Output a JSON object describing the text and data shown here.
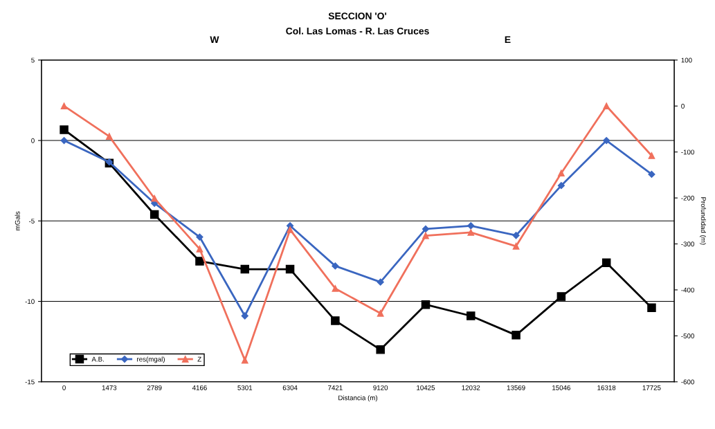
{
  "chart_data": {
    "type": "line",
    "title": "SECCION 'O'",
    "subtitle": "Col. Las Lomas - R. Las Cruces",
    "annotations": [
      "W",
      "E"
    ],
    "xlabel": "Distancia (m)",
    "ylabel": "mGals",
    "y2label": "Profundidad (m)",
    "categories": [
      "0",
      "1473",
      "2789",
      "4166",
      "5301",
      "6304",
      "7421",
      "9120",
      "10425",
      "12032",
      "13569",
      "15046",
      "16318",
      "17725"
    ],
    "series": [
      {
        "name": "A.B.",
        "color": "#000000",
        "marker": "square",
        "values": [
          0.67,
          -1.41,
          -4.6,
          -7.5,
          -8.0,
          -8.0,
          -11.2,
          -13.0,
          -10.2,
          -10.9,
          -12.1,
          -9.7,
          -7.6,
          -10.4
        ]
      },
      {
        "name": "res(mgal)",
        "color": "#3a66c0",
        "marker": "diamond",
        "values": [
          0,
          -1.34,
          -3.9,
          -6.0,
          -10.9,
          -5.3,
          -7.8,
          -8.8,
          -5.5,
          -5.3,
          -5.9,
          -2.8,
          0,
          -2.1
        ]
      },
      {
        "name": "Z",
        "color": "#f0705c",
        "marker": "triangle",
        "axis": "y2",
        "values": [
          0,
          -66,
          -201,
          -311,
          -553,
          -269,
          -397,
          -451,
          -282,
          -275,
          -305,
          -146,
          0,
          -108
        ]
      }
    ],
    "ylim": [
      -15,
      5
    ],
    "yticks": [
      -15,
      -10,
      -5,
      0,
      5
    ],
    "y2lim": [
      -600,
      100
    ],
    "y2ticks": [
      -600,
      -500,
      -400,
      -300,
      -200,
      -100,
      0,
      100
    ],
    "grid": "y",
    "legend": "bottom left",
    "line_style": "solid"
  }
}
